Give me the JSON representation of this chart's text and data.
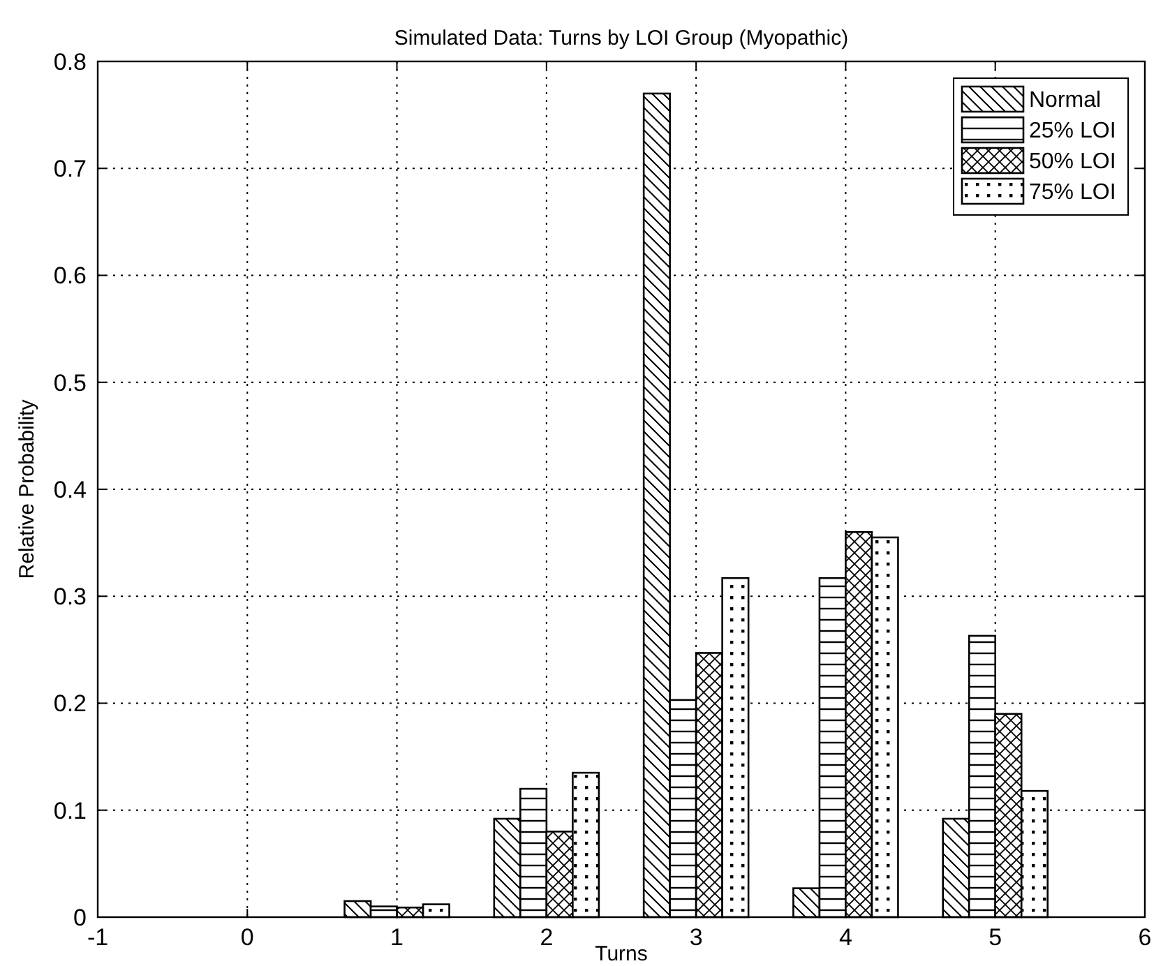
{
  "chart_data": {
    "type": "bar",
    "title": "Simulated Data: Turns by LOI Group (Myopathic)",
    "xlabel": "Turns",
    "ylabel": "Relative Probability",
    "x": [
      1,
      2,
      3,
      4,
      5
    ],
    "series": [
      {
        "name": "Normal",
        "color": "#000000",
        "values": [
          0.015,
          0.092,
          0.77,
          0.027,
          0.092
        ]
      },
      {
        "name": "25% LOI",
        "color": "#000000",
        "values": [
          0.01,
          0.12,
          0.203,
          0.317,
          0.263
        ]
      },
      {
        "name": "50% LOI",
        "color": "#000000",
        "values": [
          0.009,
          0.08,
          0.247,
          0.36,
          0.19
        ]
      },
      {
        "name": "75% LOI",
        "color": "#000000",
        "values": [
          0.012,
          0.135,
          0.317,
          0.355,
          0.118
        ]
      }
    ],
    "xlim": [
      -1,
      6
    ],
    "xticks": [
      -1,
      0,
      1,
      2,
      3,
      4,
      5,
      6
    ],
    "ylim": [
      0,
      0.8
    ],
    "yticks": [
      0,
      0.1,
      0.2,
      0.3,
      0.4,
      0.5,
      0.6,
      0.7,
      0.8
    ],
    "grid": true,
    "legend": "top right"
  }
}
